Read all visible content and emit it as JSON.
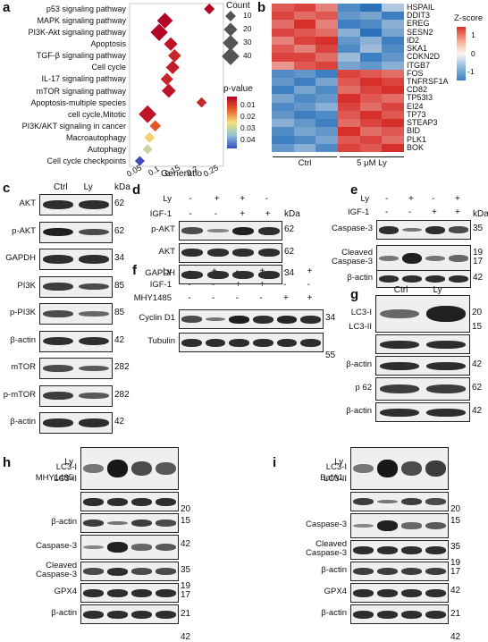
{
  "panels": {
    "a": "a",
    "b": "b",
    "c": "c",
    "d": "d",
    "e": "e",
    "f": "f",
    "g": "g",
    "h": "h",
    "i": "i"
  },
  "a": {
    "pathways": [
      "p53 signaling pathway",
      "MAPK signaling pathway",
      "PI3K-Akt signaling pathway",
      "Apoptosis",
      "TGF-β signaling pathway",
      "Cell cycle",
      "IL-17 signaling pathway",
      "mTOR signaling pathway",
      "Apoptosis-multiple species",
      "cell cycle,Mitotic",
      "PI3K/AKT signaling in cancer",
      "Macroautophagy",
      "Autophagy",
      "Cell cycle checkpoints"
    ],
    "x_ticks": [
      "0.05",
      "0.1",
      "0.15",
      "0.2",
      "0.25"
    ],
    "xlabel": "Generatio",
    "count_title": "Count",
    "count_levels": [
      "10",
      "20",
      "30",
      "40"
    ],
    "pvalue_title": "p-value",
    "pvalue_ticks": [
      "0.01",
      "0.02",
      "0.03",
      "0.04"
    ]
  },
  "chart_data": {
    "type": "scatter",
    "categories": [
      "p53 signaling pathway",
      "MAPK signaling pathway",
      "PI3K-Akt signaling pathway",
      "Apoptosis",
      "TGF-β signaling pathway",
      "Cell cycle",
      "IL-17 signaling pathway",
      "mTOR signaling pathway",
      "Apoptosis-multiple species",
      "cell cycle,Mitotic",
      "PI3K/AKT signaling in cancer",
      "Macroautophagy",
      "Autophagy",
      "Cell cycle checkpoints"
    ],
    "gene_ratio": [
      0.245,
      0.13,
      0.115,
      0.145,
      0.155,
      0.15,
      0.135,
      0.14,
      0.225,
      0.085,
      0.105,
      0.09,
      0.085,
      0.065
    ],
    "count": [
      10,
      30,
      38,
      20,
      18,
      20,
      16,
      22,
      9,
      40,
      12,
      10,
      8,
      8
    ],
    "pvalue": [
      0.002,
      0.002,
      0.002,
      0.004,
      0.006,
      0.005,
      0.006,
      0.004,
      0.006,
      0.004,
      0.012,
      0.022,
      0.028,
      0.045
    ],
    "xlabel": "Generatio",
    "xlim": [
      0.05,
      0.27
    ]
  },
  "b": {
    "ctrl_label": "Ctrl",
    "ly_label": "5 μM Ly",
    "zscore_title": "Z-score",
    "zscore_ticks": [
      "1",
      "0",
      "-1"
    ],
    "genes": [
      "HSPAIL",
      "DDIT3",
      "EREG",
      "SESN2",
      "ID2",
      "SKA1",
      "CDKN2D",
      "ITGB7",
      "FOS",
      "TNFRSF1A",
      "CD82",
      "TP53I3",
      "EI24",
      "TP73",
      "STEAP3",
      "BID",
      "PLK1",
      "BOK"
    ],
    "zscores": [
      [
        0.8,
        0.9,
        0.6,
        -0.9,
        -1.1,
        -0.4
      ],
      [
        0.9,
        0.7,
        0.8,
        -0.8,
        -0.7,
        -1.0
      ],
      [
        0.7,
        1.0,
        0.6,
        -1.0,
        -0.9,
        -0.6
      ],
      [
        0.9,
        0.8,
        0.7,
        -0.6,
        -1.1,
        -0.7
      ],
      [
        0.6,
        0.9,
        1.0,
        -0.8,
        -0.6,
        -1.0
      ],
      [
        0.8,
        0.6,
        0.9,
        -0.9,
        -0.5,
        -0.9
      ],
      [
        0.9,
        0.9,
        0.7,
        -0.5,
        -1.0,
        -0.8
      ],
      [
        0.5,
        0.8,
        0.9,
        -0.7,
        -0.8,
        -0.6
      ],
      [
        -0.9,
        -0.8,
        -1.0,
        0.9,
        0.8,
        0.7
      ],
      [
        -0.8,
        -1.0,
        -0.7,
        0.8,
        1.0,
        0.9
      ],
      [
        -1.0,
        -0.7,
        -0.9,
        0.7,
        0.9,
        1.0
      ],
      [
        -0.7,
        -0.9,
        -0.8,
        1.0,
        0.8,
        0.7
      ],
      [
        -0.9,
        -0.8,
        -0.6,
        0.9,
        0.7,
        0.9
      ],
      [
        -0.8,
        -1.0,
        -0.9,
        0.8,
        1.0,
        0.8
      ],
      [
        -0.6,
        -0.8,
        -1.0,
        0.7,
        0.9,
        1.0
      ],
      [
        -0.9,
        -0.7,
        -0.8,
        1.0,
        0.7,
        0.8
      ],
      [
        -1.0,
        -0.9,
        -0.7,
        0.8,
        0.9,
        0.7
      ],
      [
        -0.8,
        -0.6,
        -0.9,
        0.9,
        0.8,
        1.0
      ]
    ]
  },
  "c": {
    "cond1": "Ctrl",
    "cond2": "Ly",
    "kda": "kDa",
    "rows": [
      {
        "name": "AKT",
        "kda": "62"
      },
      {
        "name": "p-AKT",
        "kda": "62"
      },
      {
        "name": "GAPDH",
        "kda": "34"
      },
      {
        "name": "PI3K",
        "kda": "85"
      },
      {
        "name": "p-PI3K",
        "kda": "85"
      },
      {
        "name": "β-actin",
        "kda": "42"
      },
      {
        "name": "mTOR",
        "kda": "282"
      },
      {
        "name": "p-mTOR",
        "kda": "282"
      },
      {
        "name": "β-actin",
        "kda": "42"
      }
    ]
  },
  "d": {
    "row1": "Ly",
    "row2": "IGF-1",
    "signs1": [
      "-",
      "+",
      "+",
      "-"
    ],
    "signs2": [
      "-",
      "-",
      "+",
      "+"
    ],
    "kda": "kDa",
    "rows": [
      {
        "name": "p-AKT",
        "kda": "62"
      },
      {
        "name": "AKT",
        "kda": "62"
      },
      {
        "name": "GAPDH",
        "kda": "34"
      }
    ]
  },
  "e": {
    "row1": "Ly",
    "row2": "IGF-1",
    "signs1": [
      "-",
      "+",
      "-",
      "+"
    ],
    "signs2": [
      "-",
      "-",
      "+",
      "+"
    ],
    "kda": "kDa",
    "rows": [
      {
        "name": "Caspase-3",
        "kda": "35"
      },
      {
        "name": "Cleaved\nCaspase-3",
        "kda": "19\n17"
      },
      {
        "name": "β-actin",
        "kda": "42"
      }
    ]
  },
  "f": {
    "row1": "Ly",
    "row2": "IGF-1",
    "row3": "MHY1485",
    "signs1": [
      "-",
      "+",
      "-",
      "+",
      "-",
      "+"
    ],
    "signs2": [
      "-",
      "-",
      "+",
      "+",
      "-",
      "-"
    ],
    "signs3": [
      "-",
      "-",
      "-",
      "-",
      "+",
      "+"
    ],
    "rows": [
      {
        "name": "Cyclin D1",
        "kda": "34"
      },
      {
        "name": "Tubulin",
        "kda": "55"
      }
    ]
  },
  "g": {
    "cond1": "Ctrl",
    "cond2": "Ly",
    "rows": [
      {
        "name": "LC3-I",
        "kda": "20"
      },
      {
        "name": "LC3-II",
        "kda": "15"
      },
      {
        "name": "β-actin",
        "kda": "42"
      },
      {
        "name": "p 62",
        "kda": "62"
      },
      {
        "name": "β-actin",
        "kda": "42"
      }
    ]
  },
  "h": {
    "row1": "Ly",
    "row2": "MHY1485",
    "signs1": [
      "-",
      "+",
      "-",
      "+"
    ],
    "signs2": [
      "-",
      "-",
      "+",
      "+"
    ],
    "rows": [
      {
        "name": "LC3-I",
        "kda": "20"
      },
      {
        "name": "LC3-II",
        "kda": "15"
      },
      {
        "name": "β-actin",
        "kda": "42"
      },
      {
        "name": "Caspase-3",
        "kda": "35"
      },
      {
        "name": "Cleaved\nCaspase-3",
        "kda": "19\n17"
      },
      {
        "name": "GPX4",
        "kda": "21"
      },
      {
        "name": "β-actin",
        "kda": "42"
      }
    ]
  },
  "i": {
    "row1": "Ly",
    "row2": "BafA1",
    "signs1": [
      "-",
      "+",
      "-",
      "+"
    ],
    "signs2": [
      "-",
      "-",
      "+",
      "+"
    ],
    "rows": [
      {
        "name": "LC3-I",
        "kda": "20"
      },
      {
        "name": "LC3-II",
        "kda": "15"
      },
      {
        "name": "Caspase-3",
        "kda": "35"
      },
      {
        "name": "Cleaved\nCaspase-3",
        "kda": "19\n17"
      },
      {
        "name": "β-actin",
        "kda": "42"
      },
      {
        "name": "GPX4",
        "kda": "21"
      },
      {
        "name": "β-actin",
        "kda": "42"
      }
    ]
  },
  "colors": {
    "low": "#3b4cc0",
    "mid": "#f7f7a0",
    "high": "#b40426",
    "heat_pos": "#d7302a",
    "heat_neg": "#4a8ec4"
  }
}
